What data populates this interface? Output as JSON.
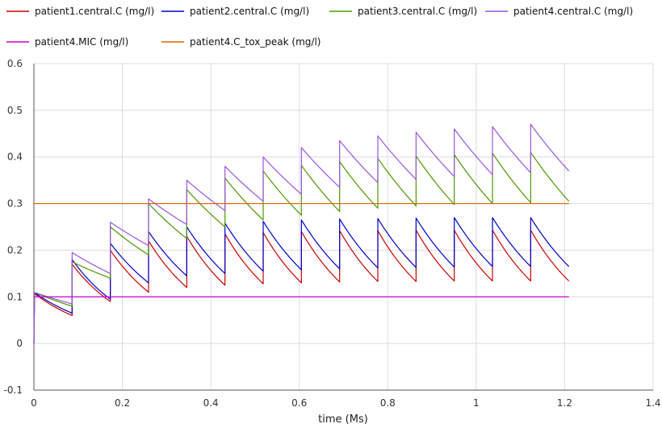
{
  "chart_data": {
    "type": "line",
    "xlabel": "time (Ms)",
    "ylabel": "",
    "xlim": [
      0,
      1.4
    ],
    "ylim": [
      -0.1,
      0.6
    ],
    "xticks": [
      "0",
      "0.2",
      "0.4",
      "0.6",
      "0.8",
      "1",
      "1.2",
      "1.4"
    ],
    "yticks": [
      "-0.1",
      "0",
      "0.1",
      "0.2",
      "0.3",
      "0.4",
      "0.5",
      "0.6"
    ],
    "grid": true,
    "legend_position": "top",
    "dose_times": [
      0,
      0.0864,
      0.1728,
      0.2592,
      0.3456,
      0.432,
      0.5184,
      0.6048,
      0.6912,
      0.7776,
      0.864,
      0.9504,
      1.0368,
      1.1232
    ],
    "x_end": 1.2096,
    "series": [
      {
        "name": "patient1.central.C (mg/l)",
        "color": "#cc0000",
        "segments": [
          [
            0.108,
            0.06
          ],
          [
            0.17,
            0.09
          ],
          [
            0.2,
            0.11
          ],
          [
            0.22,
            0.12
          ],
          [
            0.23,
            0.125
          ],
          [
            0.235,
            0.128
          ],
          [
            0.238,
            0.13
          ],
          [
            0.24,
            0.132
          ],
          [
            0.242,
            0.133
          ],
          [
            0.242,
            0.133
          ],
          [
            0.243,
            0.134
          ],
          [
            0.243,
            0.134
          ],
          [
            0.243,
            0.134
          ],
          [
            0.243,
            0.134
          ]
        ]
      },
      {
        "name": "patient2.central.C (mg/l)",
        "color": "#0000cc",
        "segments": [
          [
            0.11,
            0.065
          ],
          [
            0.18,
            0.095
          ],
          [
            0.215,
            0.13
          ],
          [
            0.24,
            0.145
          ],
          [
            0.25,
            0.15
          ],
          [
            0.258,
            0.155
          ],
          [
            0.262,
            0.158
          ],
          [
            0.265,
            0.16
          ],
          [
            0.267,
            0.162
          ],
          [
            0.268,
            0.163
          ],
          [
            0.269,
            0.164
          ],
          [
            0.27,
            0.165
          ],
          [
            0.27,
            0.165
          ],
          [
            0.27,
            0.165
          ]
        ]
      },
      {
        "name": "patient3.central.C (mg/l)",
        "color": "#4a9900",
        "segments": [
          [
            0.11,
            0.08
          ],
          [
            0.175,
            0.14
          ],
          [
            0.25,
            0.19
          ],
          [
            0.3,
            0.225
          ],
          [
            0.33,
            0.25
          ],
          [
            0.355,
            0.265
          ],
          [
            0.37,
            0.275
          ],
          [
            0.382,
            0.283
          ],
          [
            0.39,
            0.29
          ],
          [
            0.397,
            0.295
          ],
          [
            0.402,
            0.298
          ],
          [
            0.405,
            0.3
          ],
          [
            0.408,
            0.302
          ],
          [
            0.41,
            0.305
          ]
        ]
      },
      {
        "name": "patient4.central.C (mg/l)",
        "color": "#9955dd",
        "segments": [
          [
            0.11,
            0.085
          ],
          [
            0.195,
            0.15
          ],
          [
            0.26,
            0.21
          ],
          [
            0.31,
            0.255
          ],
          [
            0.35,
            0.285
          ],
          [
            0.38,
            0.305
          ],
          [
            0.4,
            0.32
          ],
          [
            0.42,
            0.335
          ],
          [
            0.435,
            0.345
          ],
          [
            0.445,
            0.352
          ],
          [
            0.453,
            0.358
          ],
          [
            0.46,
            0.362
          ],
          [
            0.465,
            0.366
          ],
          [
            0.47,
            0.37
          ]
        ]
      },
      {
        "name": "patient4.MIC (mg/l)",
        "color": "#cc00cc",
        "constant": 0.1
      },
      {
        "name": "patient4.C_tox_peak (mg/l)",
        "color": "#dd6600",
        "constant": 0.3
      }
    ]
  }
}
